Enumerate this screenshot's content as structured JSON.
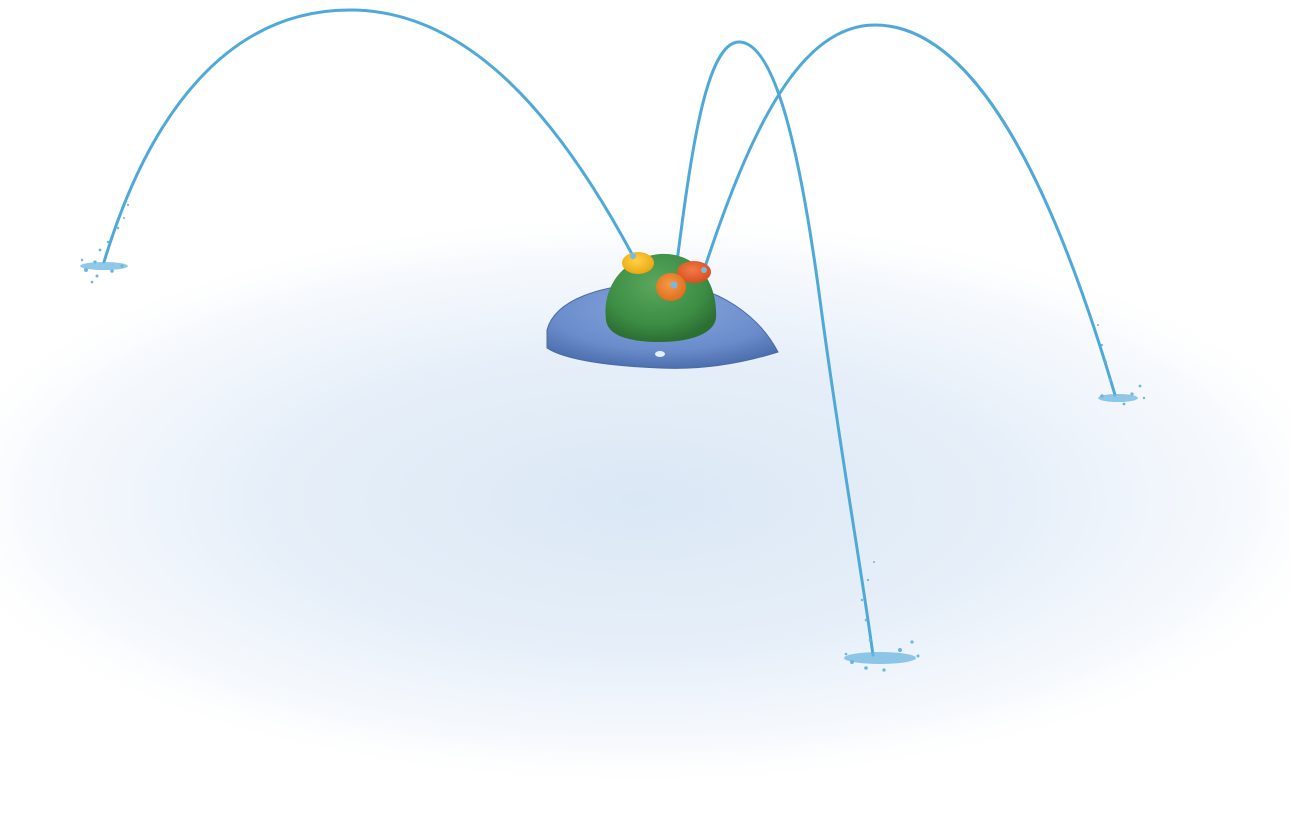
{
  "scene": {
    "colors": {
      "background": "#ffffff",
      "ground_mist": "#dfeaf6",
      "water_jet": "#4fa9d8",
      "base_dish": "#6b8fc9",
      "base_dish_shadow": "#4d6fae",
      "dome": "#3f8f46",
      "nozzle_yellow": "#f2b51c",
      "nozzle_orange": "#e87a24",
      "nozzle_red": "#e3582a"
    },
    "icons": {
      "fountain": "splash-pad-fountain-icon",
      "nozzle": "water-nozzle-icon",
      "splash": "water-splash-icon"
    }
  }
}
